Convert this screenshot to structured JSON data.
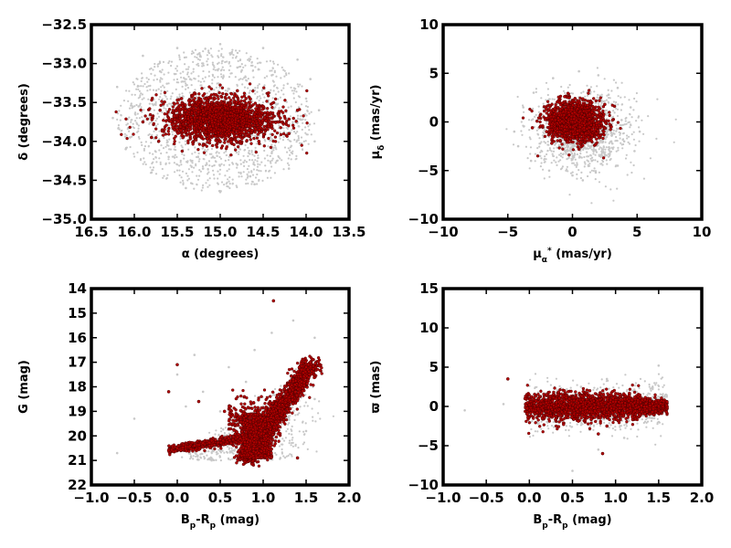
{
  "chart_data": [
    {
      "type": "scatter",
      "xlabel_parts": [
        {
          "t": "α (degrees)"
        }
      ],
      "ylabel_parts": [
        {
          "t": "δ (degrees)"
        }
      ],
      "xlim": [
        16.5,
        13.5
      ],
      "ylim": [
        -35.0,
        -32.5
      ],
      "xticks": [
        16.5,
        16.0,
        15.5,
        15.0,
        14.5,
        14.0,
        13.5
      ],
      "xtick_labels": [
        "16.5",
        "16.0",
        "15.5",
        "15.0",
        "14.5",
        "14.0",
        "13.5"
      ],
      "yticks": [
        -35.0,
        -34.5,
        -34.0,
        -33.5,
        -33.0,
        -32.5
      ],
      "ytick_labels": [
        "−35.0",
        "−34.5",
        "−34.0",
        "−33.5",
        "−33.0",
        "−32.5"
      ],
      "grid": false,
      "series": [
        {
          "role": "field",
          "color": "#c8c8c8",
          "points": [
            [
              15.9,
              -32.9
            ],
            [
              15.5,
              -32.8
            ],
            [
              15.0,
              -32.75
            ],
            [
              14.5,
              -32.8
            ],
            [
              14.1,
              -32.95
            ],
            [
              16.2,
              -33.3
            ],
            [
              16.25,
              -33.7
            ],
            [
              16.1,
              -34.1
            ],
            [
              15.8,
              -34.4
            ],
            [
              15.4,
              -34.6
            ],
            [
              15.0,
              -34.65
            ],
            [
              14.6,
              -34.55
            ],
            [
              14.2,
              -34.35
            ],
            [
              13.9,
              -34.0
            ],
            [
              13.85,
              -33.6
            ],
            [
              13.95,
              -33.2
            ],
            [
              15.7,
              -33.1
            ],
            [
              15.2,
              -33.0
            ],
            [
              14.8,
              -33.05
            ],
            [
              14.4,
              -33.15
            ],
            [
              15.6,
              -34.2
            ],
            [
              15.2,
              -34.35
            ],
            [
              14.8,
              -34.3
            ],
            [
              14.4,
              -34.15
            ],
            [
              15.95,
              -33.55
            ],
            [
              14.1,
              -33.75
            ],
            [
              15.35,
              -33.2
            ],
            [
              14.65,
              -34.45
            ],
            [
              16.05,
              -33.95
            ],
            [
              14.0,
              -33.45
            ]
          ]
        },
        {
          "role": "member",
          "color": "#b00000",
          "points": [
            [
              15.0,
              -33.7
            ],
            [
              15.2,
              -33.6
            ],
            [
              14.8,
              -33.8
            ],
            [
              15.4,
              -33.75
            ],
            [
              14.6,
              -33.65
            ],
            [
              15.1,
              -33.5
            ],
            [
              14.9,
              -33.9
            ],
            [
              15.5,
              -33.85
            ],
            [
              14.5,
              -33.55
            ],
            [
              15.3,
              -33.95
            ],
            [
              14.7,
              -33.45
            ],
            [
              15.6,
              -33.7
            ],
            [
              14.4,
              -33.8
            ],
            [
              15.0,
              -34.0
            ],
            [
              15.05,
              -33.4
            ],
            [
              15.7,
              -33.6
            ],
            [
              14.3,
              -33.7
            ],
            [
              15.2,
              -34.05
            ],
            [
              14.8,
              -33.35
            ],
            [
              15.9,
              -33.75
            ],
            [
              14.2,
              -33.9
            ],
            [
              15.45,
              -33.45
            ],
            [
              14.55,
              -34.0
            ],
            [
              15.8,
              -33.95
            ],
            [
              14.1,
              -33.6
            ]
          ]
        }
      ]
    },
    {
      "type": "scatter",
      "xlabel_parts": [
        {
          "t": "μ"
        },
        {
          "t": "α",
          "sub": true
        },
        {
          "t": "*",
          "sup": true
        },
        {
          "t": "  (mas/yr)"
        }
      ],
      "ylabel_parts": [
        {
          "t": "μ"
        },
        {
          "t": "δ",
          "sub": true
        },
        {
          "t": "  (mas/yr)"
        }
      ],
      "xlim": [
        -10,
        10
      ],
      "ylim": [
        -10,
        10
      ],
      "xticks": [
        -10,
        -5,
        0,
        5,
        10
      ],
      "xtick_labels": [
        "−10",
        "−5",
        "0",
        "5",
        "10"
      ],
      "yticks": [
        -10,
        -5,
        0,
        5,
        10
      ],
      "ytick_labels": [
        "−10",
        "−5",
        "0",
        "5",
        "10"
      ],
      "grid": false,
      "series": [
        {
          "role": "field",
          "color": "#c8c8c8",
          "points": [
            [
              -4.5,
              -1.0
            ],
            [
              -3.8,
              1.5
            ],
            [
              -3.0,
              3.0
            ],
            [
              -1.5,
              4.5
            ],
            [
              0.5,
              5.2
            ],
            [
              2.0,
              4.8
            ],
            [
              3.5,
              3.5
            ],
            [
              4.5,
              1.5
            ],
            [
              5.2,
              -1.0
            ],
            [
              4.8,
              -3.0
            ],
            [
              3.5,
              -4.5
            ],
            [
              1.8,
              -5.2
            ],
            [
              0.0,
              -5.5
            ],
            [
              -1.8,
              -5.0
            ],
            [
              -3.2,
              -4.0
            ],
            [
              -4.2,
              -2.5
            ],
            [
              2.5,
              -3.5
            ],
            [
              3.0,
              -2.0
            ],
            [
              1.5,
              -4.0
            ],
            [
              4.0,
              -2.0
            ],
            [
              2.8,
              2.8
            ],
            [
              -2.5,
              -3.5
            ],
            [
              3.8,
              0.2
            ],
            [
              0.8,
              -6.0
            ]
          ]
        },
        {
          "role": "member",
          "color": "#b00000",
          "points": [
            [
              0.0,
              0.0
            ],
            [
              0.8,
              0.5
            ],
            [
              -0.8,
              -0.4
            ],
            [
              1.5,
              1.0
            ],
            [
              -1.4,
              0.8
            ],
            [
              0.4,
              -1.2
            ],
            [
              -0.3,
              1.5
            ],
            [
              2.2,
              0.2
            ],
            [
              -2.0,
              -1.0
            ],
            [
              1.0,
              -1.8
            ],
            [
              -1.0,
              2.0
            ],
            [
              2.5,
              1.8
            ],
            [
              -2.6,
              0.4
            ],
            [
              0.2,
              2.4
            ],
            [
              1.8,
              -2.3
            ],
            [
              -1.6,
              -2.2
            ],
            [
              3.0,
              -0.5
            ],
            [
              -3.1,
              -0.6
            ],
            [
              0.5,
              -2.8
            ],
            [
              -0.6,
              2.6
            ]
          ]
        }
      ]
    },
    {
      "type": "scatter",
      "xlabel_parts": [
        {
          "t": "B"
        },
        {
          "t": "p",
          "sub": true
        },
        {
          "t": "-R"
        },
        {
          "t": "p",
          "sub": true
        },
        {
          "t": "  (mag)"
        }
      ],
      "ylabel_parts": [
        {
          "t": "G (mag)"
        }
      ],
      "xlim": [
        -1.0,
        2.0
      ],
      "ylim": [
        22,
        14
      ],
      "xticks": [
        -1.0,
        -0.5,
        0.0,
        0.5,
        1.0,
        1.5,
        2.0
      ],
      "xtick_labels": [
        "−1.0",
        "−0.5",
        "0.0",
        "0.5",
        "1.0",
        "1.5",
        "2.0"
      ],
      "yticks": [
        22,
        21,
        20,
        19,
        18,
        17,
        16,
        15,
        14
      ],
      "ytick_labels": [
        "22",
        "21",
        "20",
        "19",
        "18",
        "17",
        "16",
        "15",
        "14"
      ],
      "grid": false,
      "series": [
        {
          "role": "field",
          "color": "#c8c8c8",
          "points": [
            [
              -0.7,
              20.7
            ],
            [
              -0.5,
              19.3
            ],
            [
              0.1,
              18.8
            ],
            [
              0.3,
              18.2
            ],
            [
              0.6,
              17.2
            ],
            [
              0.9,
              16.5
            ],
            [
              1.1,
              15.8
            ],
            [
              1.35,
              15.3
            ],
            [
              1.6,
              16.0
            ],
            [
              0.5,
              19.0
            ],
            [
              0.7,
              18.5
            ],
            [
              0.8,
              17.8
            ],
            [
              1.5,
              19.8
            ],
            [
              1.6,
              18.5
            ],
            [
              0.2,
              16.7
            ],
            [
              0.4,
              21.0
            ],
            [
              1.2,
              20.9
            ],
            [
              0.0,
              17.5
            ]
          ]
        },
        {
          "role": "member",
          "color": "#b00000",
          "points": [
            [
              -0.1,
              20.6
            ],
            [
              0.0,
              20.5
            ],
            [
              0.1,
              20.45
            ],
            [
              0.2,
              20.4
            ],
            [
              0.3,
              20.3
            ],
            [
              0.4,
              20.2
            ],
            [
              0.5,
              20.15
            ],
            [
              0.6,
              20.1
            ],
            [
              0.7,
              20.05
            ],
            [
              0.75,
              20.8
            ],
            [
              0.8,
              20.5
            ],
            [
              0.85,
              20.2
            ],
            [
              0.9,
              20.0
            ],
            [
              0.95,
              20.7
            ],
            [
              1.0,
              19.6
            ],
            [
              1.05,
              19.3
            ],
            [
              1.1,
              19.0
            ],
            [
              1.15,
              18.7
            ],
            [
              1.2,
              18.4
            ],
            [
              1.25,
              18.1
            ],
            [
              1.3,
              17.9
            ],
            [
              1.35,
              17.7
            ],
            [
              1.4,
              17.5
            ],
            [
              1.45,
              17.3
            ],
            [
              1.5,
              17.2
            ],
            [
              1.55,
              17.0
            ],
            [
              0.65,
              19.5
            ],
            [
              0.55,
              19.0
            ],
            [
              0.8,
              19.2
            ],
            [
              1.0,
              20.3
            ],
            [
              1.4,
              20.9
            ],
            [
              0.0,
              17.1
            ],
            [
              -0.1,
              18.2
            ],
            [
              0.25,
              18.6
            ],
            [
              1.12,
              14.5
            ]
          ]
        }
      ]
    },
    {
      "type": "scatter",
      "xlabel_parts": [
        {
          "t": "B"
        },
        {
          "t": "p",
          "sub": true
        },
        {
          "t": "-R"
        },
        {
          "t": "p",
          "sub": true
        },
        {
          "t": "  (mag)"
        }
      ],
      "ylabel_parts": [
        {
          "t": "ϖ (mas)"
        }
      ],
      "xlim": [
        -1.0,
        2.0
      ],
      "ylim": [
        -10,
        15
      ],
      "xticks": [
        -1.0,
        -0.5,
        0.0,
        0.5,
        1.0,
        1.5,
        2.0
      ],
      "xtick_labels": [
        "−1.0",
        "−0.5",
        "0.0",
        "0.5",
        "1.0",
        "1.5",
        "2.0"
      ],
      "yticks": [
        -10,
        -5,
        0,
        5,
        10,
        15
      ],
      "ytick_labels": [
        "−10",
        "−5",
        "0",
        "5",
        "10",
        "15"
      ],
      "grid": false,
      "series": [
        {
          "role": "field",
          "color": "#c8c8c8",
          "points": [
            [
              -0.75,
              -0.5
            ],
            [
              -0.3,
              0.3
            ],
            [
              0.6,
              2.5
            ],
            [
              0.9,
              3.5
            ],
            [
              1.1,
              -4.0
            ],
            [
              0.8,
              -5.5
            ],
            [
              0.5,
              -8.2
            ],
            [
              1.5,
              5.2
            ],
            [
              1.45,
              -1.5
            ],
            [
              0.3,
              -2.5
            ],
            [
              0.7,
              -3.0
            ],
            [
              1.2,
              2.0
            ]
          ]
        },
        {
          "role": "member",
          "color": "#b00000",
          "points": [
            [
              0.0,
              0.2
            ],
            [
              0.1,
              -0.3
            ],
            [
              0.2,
              0.5
            ],
            [
              0.3,
              -0.5
            ],
            [
              0.4,
              0.3
            ],
            [
              0.5,
              -0.2
            ],
            [
              0.6,
              0.6
            ],
            [
              0.7,
              -0.7
            ],
            [
              0.8,
              0.4
            ],
            [
              0.9,
              -0.4
            ],
            [
              1.0,
              0.6
            ],
            [
              1.1,
              -0.3
            ],
            [
              1.2,
              0.3
            ],
            [
              1.3,
              0.1
            ],
            [
              1.4,
              0.1
            ],
            [
              1.5,
              0.05
            ],
            [
              1.55,
              0.0
            ],
            [
              -0.05,
              1.0
            ],
            [
              0.2,
              1.5
            ],
            [
              0.7,
              2.0
            ],
            [
              0.9,
              -2.5
            ],
            [
              0.8,
              -3.5
            ],
            [
              0.85,
              -6.0
            ],
            [
              -0.25,
              3.5
            ],
            [
              0.15,
              -1.5
            ],
            [
              1.05,
              1.5
            ]
          ]
        }
      ]
    }
  ]
}
